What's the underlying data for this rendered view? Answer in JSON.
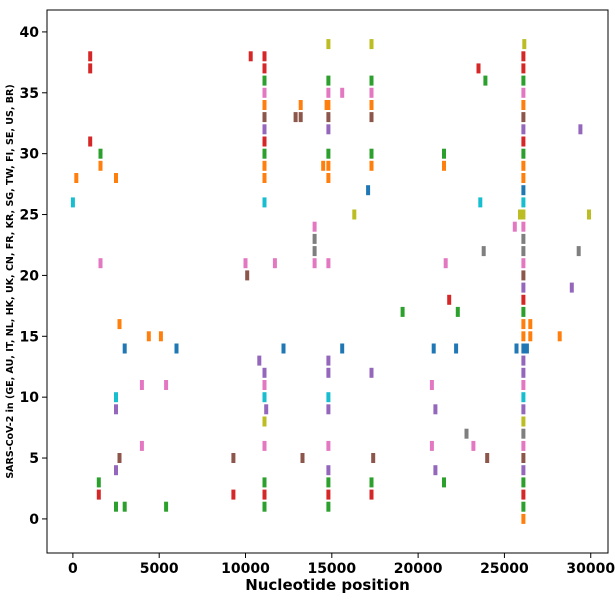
{
  "chart_data": {
    "type": "scatter",
    "title": "",
    "xlabel": "Nucleotide position",
    "ylabel": "SARS-CoV-2 in (GE, AU, IT, NL, HK, UK, CN, FR, KR, SG, TW, FI, SE, US, BR)",
    "xlim": [
      -1500,
      31000
    ],
    "ylim": [
      -2.8,
      41.8
    ],
    "xticks": [
      "0",
      "5000",
      "10000",
      "15000",
      "20000",
      "25000",
      "30000"
    ],
    "yticks": [
      "0",
      "5",
      "10",
      "15",
      "20",
      "25",
      "30",
      "35",
      "40"
    ],
    "grid": false,
    "legend": "none",
    "colors": {
      "tab:blue": "#1f77b4",
      "tab:orange": "#ff7f0e",
      "tab:green": "#2ca02c",
      "tab:red": "#d62728",
      "tab:purple": "#9467bd",
      "tab:brown": "#8c564b",
      "tab:pink": "#e377c2",
      "tab:gray": "#7f7f7f",
      "tab:olive": "#bcbd22",
      "tab:cyan": "#17becf"
    },
    "series": [
      {
        "y": 39,
        "color": "#bcbd22",
        "x": [
          14800,
          17300,
          26150
        ]
      },
      {
        "y": 38,
        "color": "#d62728",
        "x": [
          1000,
          10300,
          11100,
          26100
        ]
      },
      {
        "y": 37,
        "color": "#d62728",
        "x": [
          1000,
          11100,
          23500,
          26100
        ]
      },
      {
        "y": 36,
        "color": "#2ca02c",
        "x": [
          11100,
          14800,
          17300,
          23900,
          26100
        ]
      },
      {
        "y": 35,
        "color": "#e377c2",
        "x": [
          11100,
          14800,
          15600,
          17300,
          26100
        ]
      },
      {
        "y": 34,
        "color": "#ff7f0e",
        "x": [
          11100,
          13200,
          14700,
          14800,
          17300,
          26100
        ]
      },
      {
        "y": 33,
        "color": "#8c564b",
        "x": [
          11100,
          12900,
          13200,
          14800,
          17300,
          26100
        ]
      },
      {
        "y": 32,
        "color": "#9467bd",
        "x": [
          11100,
          14800,
          26100,
          29400
        ]
      },
      {
        "y": 31,
        "color": "#d62728",
        "x": [
          1000,
          11100,
          26100
        ]
      },
      {
        "y": 30,
        "color": "#2ca02c",
        "x": [
          1600,
          11100,
          14800,
          17300,
          21500,
          26100
        ]
      },
      {
        "y": 29,
        "color": "#ff7f0e",
        "x": [
          1600,
          11100,
          14500,
          14800,
          17300,
          21500,
          26100
        ]
      },
      {
        "y": 28,
        "color": "#ff7f0e",
        "x": [
          200,
          2500,
          11100,
          14800,
          26100
        ]
      },
      {
        "y": 27,
        "color": "#1f77b4",
        "x": [
          17100,
          26100
        ]
      },
      {
        "y": 26,
        "color": "#17becf",
        "x": [
          0,
          11100,
          23600,
          26100
        ]
      },
      {
        "y": 25,
        "color": "#bcbd22",
        "x": [
          16300,
          25900,
          26100,
          29900
        ]
      },
      {
        "y": 24,
        "color": "#e377c2",
        "x": [
          14000,
          25600,
          26100
        ]
      },
      {
        "y": 23,
        "color": "#7f7f7f",
        "x": [
          14000,
          26100
        ]
      },
      {
        "y": 22,
        "color": "#7f7f7f",
        "x": [
          14000,
          23800,
          26100,
          29300
        ]
      },
      {
        "y": 21,
        "color": "#e377c2",
        "x": [
          1600,
          10000,
          11700,
          14000,
          14800,
          21600,
          26100
        ]
      },
      {
        "y": 20,
        "color": "#8c564b",
        "x": [
          10100,
          26100
        ]
      },
      {
        "y": 19,
        "color": "#9467bd",
        "x": [
          26100,
          28900
        ]
      },
      {
        "y": 18,
        "color": "#d62728",
        "x": [
          21800,
          26100
        ]
      },
      {
        "y": 17,
        "color": "#2ca02c",
        "x": [
          19100,
          22300,
          26100
        ]
      },
      {
        "y": 16,
        "color": "#ff7f0e",
        "x": [
          2700,
          26100,
          26500
        ]
      },
      {
        "y": 15,
        "color": "#ff7f0e",
        "x": [
          4400,
          5100,
          26100,
          26500,
          28200
        ]
      },
      {
        "y": 14,
        "color": "#1f77b4",
        "x": [
          3000,
          6000,
          12200,
          15600,
          20900,
          22200,
          25700,
          26100,
          26200,
          26300
        ]
      },
      {
        "y": 13,
        "color": "#9467bd",
        "x": [
          10800,
          14800,
          26100
        ]
      },
      {
        "y": 12,
        "color": "#9467bd",
        "x": [
          11100,
          14800,
          17300,
          26100
        ]
      },
      {
        "y": 11,
        "color": "#e377c2",
        "x": [
          4000,
          5400,
          11100,
          20800,
          26100
        ]
      },
      {
        "y": 10,
        "color": "#17becf",
        "x": [
          2500,
          11100,
          14800,
          26100
        ]
      },
      {
        "y": 9,
        "color": "#9467bd",
        "x": [
          2500,
          11200,
          14800,
          21000,
          26100
        ]
      },
      {
        "y": 8,
        "color": "#bcbd22",
        "x": [
          11100,
          26100
        ]
      },
      {
        "y": 7,
        "color": "#7f7f7f",
        "x": [
          22800,
          26100
        ]
      },
      {
        "y": 6,
        "color": "#e377c2",
        "x": [
          4000,
          11100,
          14800,
          20800,
          23200,
          26100
        ]
      },
      {
        "y": 5,
        "color": "#8c564b",
        "x": [
          2700,
          9300,
          13300,
          17400,
          24000,
          26100
        ]
      },
      {
        "y": 4,
        "color": "#9467bd",
        "x": [
          2500,
          14800,
          21000,
          26100
        ]
      },
      {
        "y": 3,
        "color": "#2ca02c",
        "x": [
          1500,
          11100,
          14800,
          17300,
          21500,
          26100
        ]
      },
      {
        "y": 2,
        "color": "#d62728",
        "x": [
          1500,
          9300,
          11100,
          14800,
          17300,
          26100
        ]
      },
      {
        "y": 1,
        "color": "#2ca02c",
        "x": [
          2500,
          3000,
          5400,
          11100,
          14800,
          26100
        ]
      },
      {
        "y": 0,
        "color": "#ff7f0e",
        "x": [
          26100
        ]
      }
    ]
  }
}
